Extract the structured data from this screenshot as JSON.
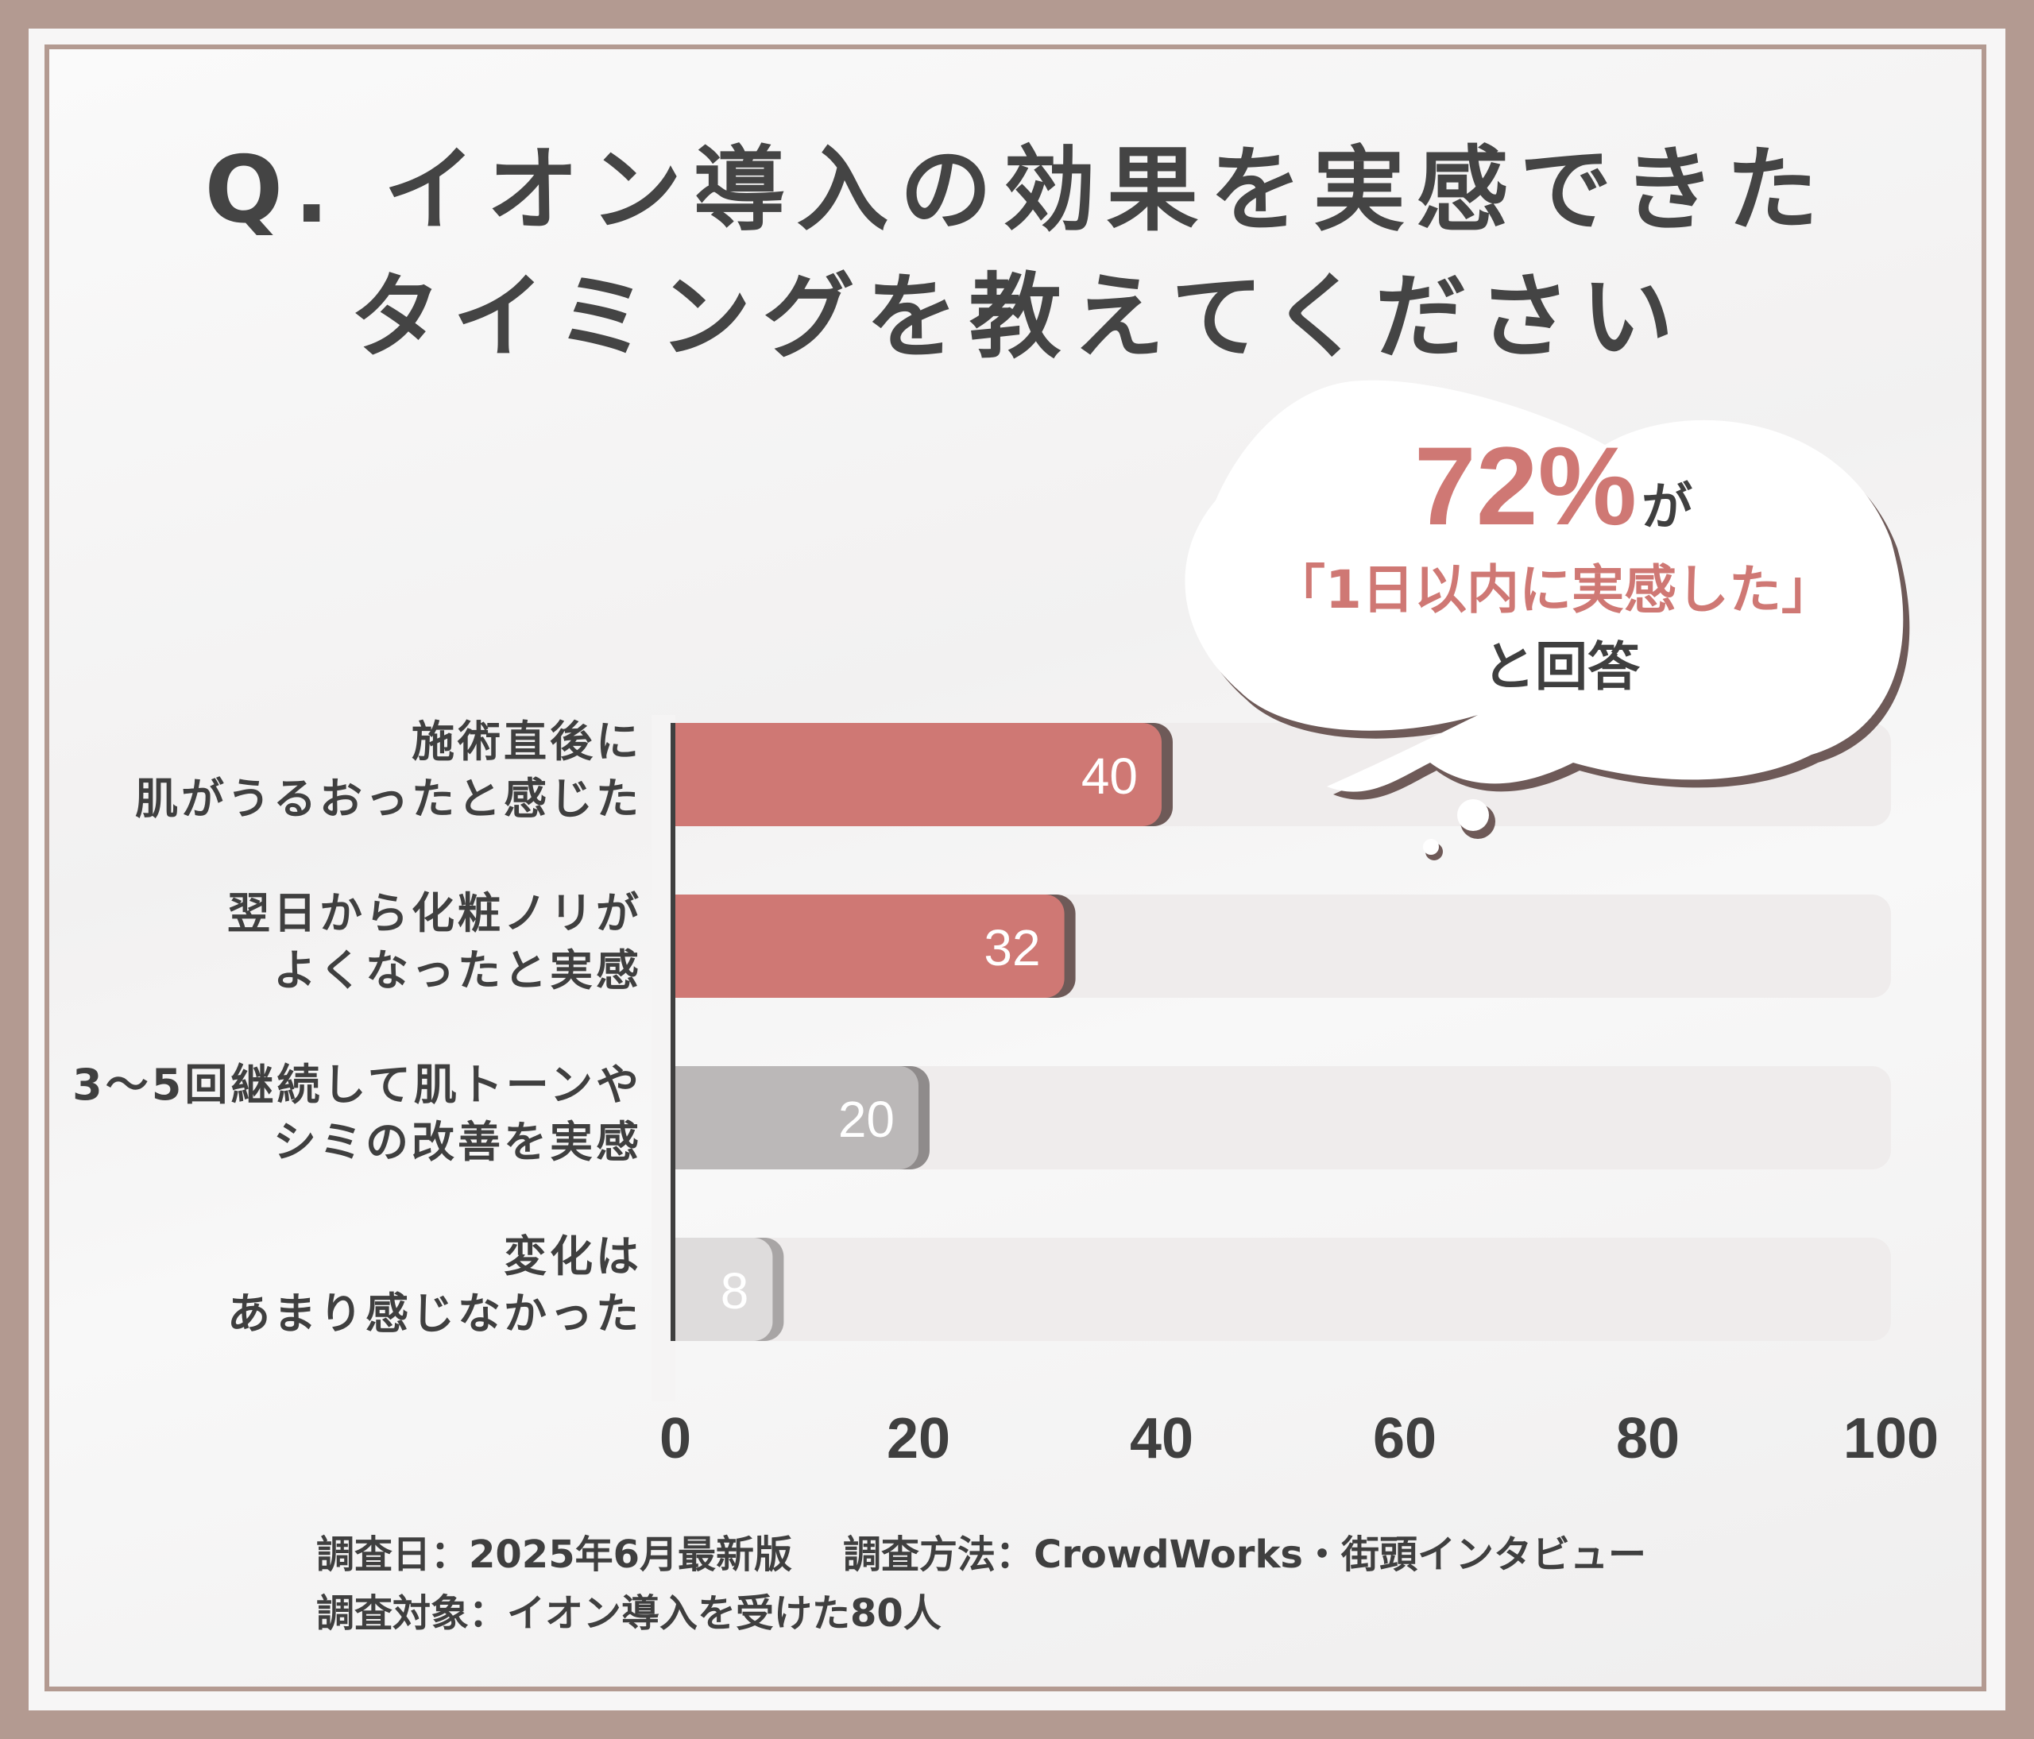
{
  "title_lines": [
    "Q. イオン導入の効果を実感できた",
    "タイミングを教えてください"
  ],
  "callout": {
    "percent": "72%",
    "ga": "が",
    "line2": "「1日以内に実感した」",
    "line3": "と回答"
  },
  "footer": {
    "date": "調査日：2025年6月最新版",
    "method": "調査方法：CrowdWorks・街頭インタビュー",
    "target": "調査対象：イオン導入を受けた80人"
  },
  "colors": {
    "accent": "#cf7874",
    "accent_shadow": "#6e5a58",
    "gray_bar": "#bbb8b8",
    "light_bar": "#dedcdc",
    "track": "#efecec",
    "text": "#3f3f3f"
  },
  "chart_data": {
    "type": "bar",
    "orientation": "horizontal",
    "categories": [
      [
        "施術直後に",
        "肌がうるおったと感じた"
      ],
      [
        "翌日から化粧ノリが",
        "よくなったと実感"
      ],
      [
        "3〜5回継続して肌トーンや",
        "シミの改善を実感"
      ],
      [
        "変化は",
        "あまり感じなかった"
      ]
    ],
    "values": [
      40,
      32,
      20,
      8
    ],
    "value_labels": [
      "40",
      "32",
      "20",
      "8"
    ],
    "xlim": [
      0,
      100
    ],
    "xticks": [
      "0",
      "20",
      "40",
      "60",
      "80",
      "100"
    ],
    "grid": false
  }
}
